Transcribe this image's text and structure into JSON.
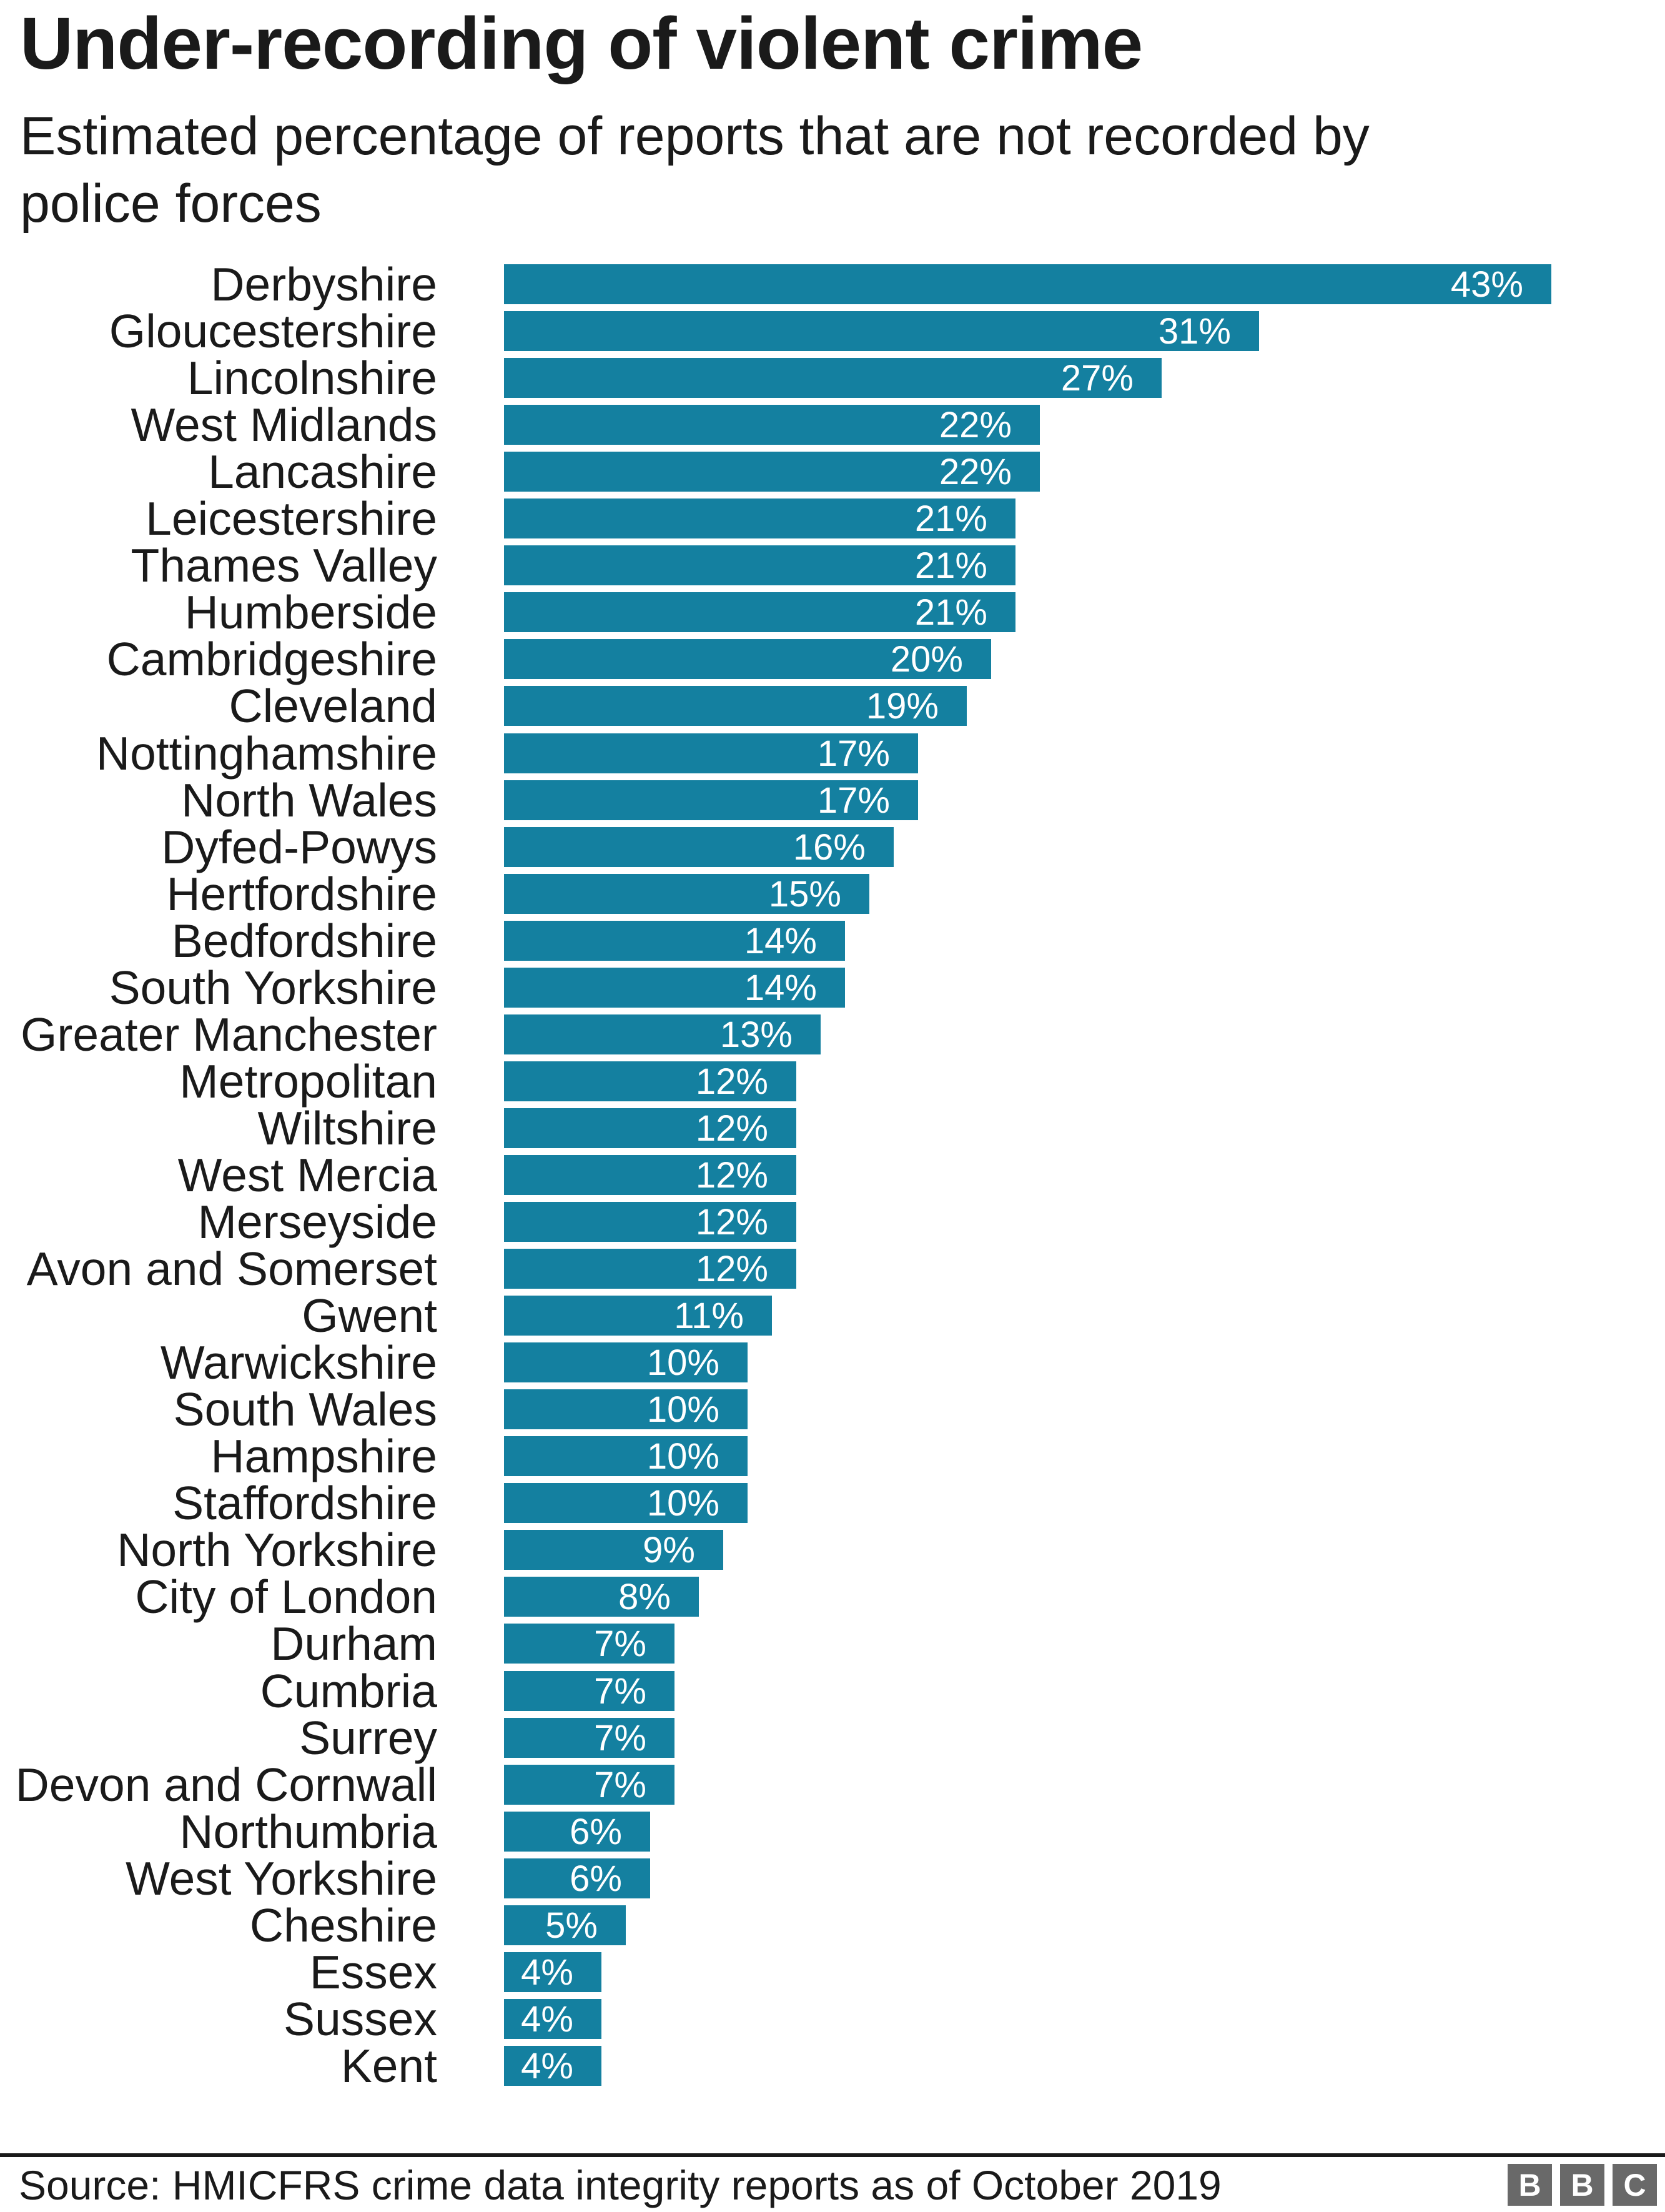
{
  "header": {
    "title": "Under-recording of violent crime",
    "subtitle": "Estimated percentage of reports that are not recorded by police forces"
  },
  "footer": {
    "source": "Source: HMICFRS crime data integrity reports as of October 2019",
    "logo_letters": [
      "B",
      "B",
      "C"
    ]
  },
  "colors": {
    "bar": "#1480a0",
    "text": "#1a1a1a",
    "value_label": "#ffffff",
    "logo_block": "#696969",
    "divider": "#1a1a1a",
    "background": "#ffffff"
  },
  "chart_data": {
    "type": "bar",
    "orientation": "horizontal",
    "title": "Under-recording of violent crime",
    "subtitle": "Estimated percentage of reports that are not recorded by police forces",
    "source": "Source: HMICFRS crime data integrity reports as of October 2019",
    "unit": "%",
    "xlabel": "",
    "ylabel": "",
    "xlim": [
      0,
      43
    ],
    "grid": false,
    "legend": false,
    "sort": "descending",
    "value_labels_position": "inside-end",
    "categories": [
      "Derbyshire",
      "Gloucestershire",
      "Lincolnshire",
      "West Midlands",
      "Lancashire",
      "Leicestershire",
      "Thames Valley",
      "Humberside",
      "Cambridgeshire",
      "Cleveland",
      "Nottinghamshire",
      "North Wales",
      "Dyfed-Powys",
      "Hertfordshire",
      "Bedfordshire",
      "South Yorkshire",
      "Greater Manchester",
      "Metropolitan",
      "Wiltshire",
      "West Mercia",
      "Merseyside",
      "Avon and Somerset",
      "Gwent",
      "Warwickshire",
      "South Wales",
      "Hampshire",
      "Staffordshire",
      "North Yorkshire",
      "City of London",
      "Durham",
      "Cumbria",
      "Surrey",
      "Devon and Cornwall",
      "Northumbria",
      "West Yorkshire",
      "Cheshire",
      "Essex",
      "Sussex",
      "Kent"
    ],
    "values": [
      43,
      31,
      27,
      22,
      22,
      21,
      21,
      21,
      20,
      19,
      17,
      17,
      16,
      15,
      14,
      14,
      13,
      12,
      12,
      12,
      12,
      12,
      11,
      10,
      10,
      10,
      10,
      9,
      8,
      7,
      7,
      7,
      7,
      6,
      6,
      5,
      4,
      4,
      4
    ]
  }
}
